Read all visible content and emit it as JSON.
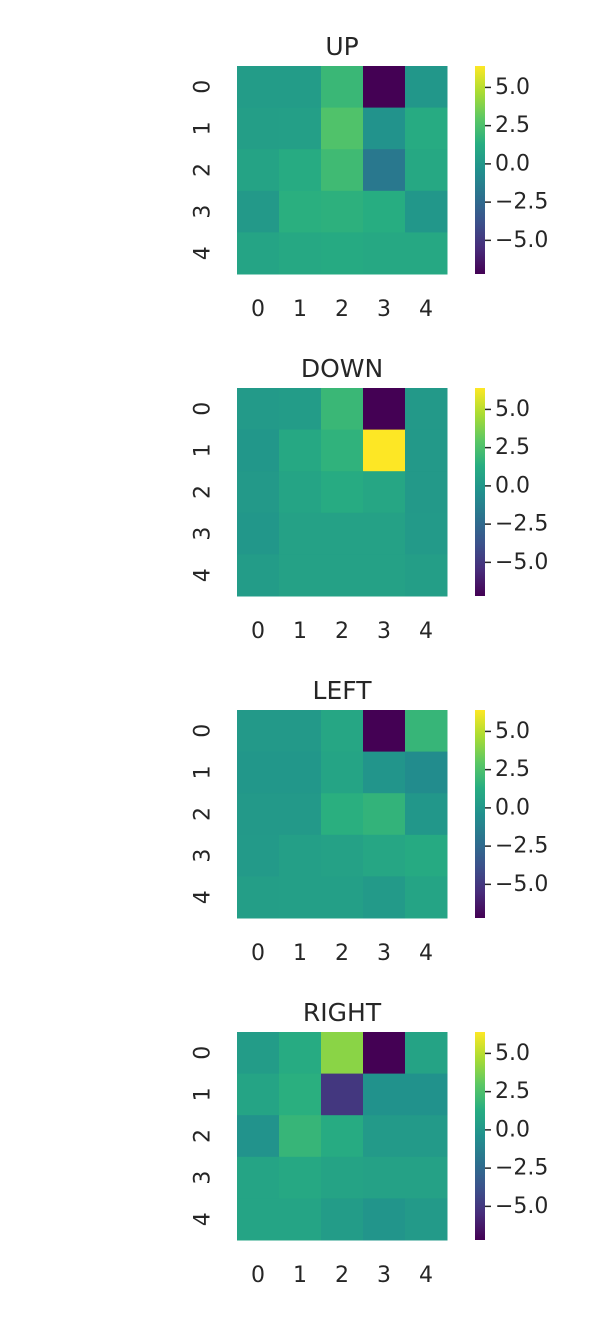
{
  "chart_data": [
    {
      "type": "heatmap",
      "title": "UP",
      "x": [
        "0",
        "1",
        "2",
        "3",
        "4"
      ],
      "y": [
        "0",
        "1",
        "2",
        "3",
        "4"
      ],
      "values": [
        [
          0.3,
          0.3,
          1.9,
          -7.2,
          0.0
        ],
        [
          0.4,
          0.5,
          2.6,
          -0.2,
          1.2
        ],
        [
          0.7,
          1.2,
          2.1,
          -1.7,
          1.0
        ],
        [
          0.1,
          1.4,
          1.5,
          1.3,
          0.0
        ],
        [
          0.8,
          1.0,
          1.1,
          1.0,
          1.0
        ]
      ],
      "colorbar": {
        "ticks": [
          "5.0",
          "2.5",
          "0.0",
          "−2.5",
          "−5.0"
        ],
        "tick_values": [
          5.0,
          2.5,
          0.0,
          -2.5,
          -5.0
        ],
        "range": [
          -7.2,
          6.4
        ],
        "colormap": "viridis"
      }
    },
    {
      "type": "heatmap",
      "title": "DOWN",
      "x": [
        "0",
        "1",
        "2",
        "3",
        "4"
      ],
      "y": [
        "0",
        "1",
        "2",
        "3",
        "4"
      ],
      "values": [
        [
          0.2,
          0.3,
          1.9,
          -7.2,
          0.1
        ],
        [
          0.0,
          1.0,
          1.6,
          6.4,
          0.1
        ],
        [
          0.1,
          0.8,
          1.2,
          0.9,
          0.1
        ],
        [
          0.0,
          0.6,
          0.6,
          0.6,
          0.2
        ],
        [
          0.3,
          0.6,
          0.6,
          0.6,
          0.4
        ]
      ],
      "colorbar": {
        "ticks": [
          "5.0",
          "2.5",
          "0.0",
          "−2.5",
          "−5.0"
        ],
        "tick_values": [
          5.0,
          2.5,
          0.0,
          -2.5,
          -5.0
        ],
        "range": [
          -7.2,
          6.4
        ],
        "colormap": "viridis"
      }
    },
    {
      "type": "heatmap",
      "title": "LEFT",
      "x": [
        "0",
        "1",
        "2",
        "3",
        "4"
      ],
      "y": [
        "0",
        "1",
        "2",
        "3",
        "4"
      ],
      "values": [
        [
          0.1,
          0.1,
          0.9,
          -7.2,
          1.8
        ],
        [
          0.0,
          0.0,
          0.8,
          -0.1,
          -0.6
        ],
        [
          0.1,
          0.1,
          1.4,
          1.7,
          0.0
        ],
        [
          0.2,
          0.5,
          0.6,
          0.9,
          1.1
        ],
        [
          0.4,
          0.5,
          0.5,
          0.2,
          0.8
        ]
      ],
      "colorbar": {
        "ticks": [
          "5.0",
          "2.5",
          "0.0",
          "−2.5",
          "−5.0"
        ],
        "tick_values": [
          5.0,
          2.5,
          0.0,
          -2.5,
          -5.0
        ],
        "range": [
          -7.2,
          6.4
        ],
        "colormap": "viridis"
      }
    },
    {
      "type": "heatmap",
      "title": "RIGHT",
      "x": [
        "0",
        "1",
        "2",
        "3",
        "4"
      ],
      "y": [
        "0",
        "1",
        "2",
        "3",
        "4"
      ],
      "values": [
        [
          0.3,
          1.2,
          4.0,
          -7.2,
          0.7
        ],
        [
          0.8,
          1.4,
          -5.0,
          -0.3,
          -0.3
        ],
        [
          -0.2,
          1.8,
          1.2,
          0.2,
          0.2
        ],
        [
          0.8,
          1.0,
          0.7,
          0.6,
          0.6
        ],
        [
          0.8,
          0.8,
          0.3,
          -0.1,
          0.2
        ]
      ],
      "colorbar": {
        "ticks": [
          "5.0",
          "2.5",
          "0.0",
          "−2.5",
          "−5.0"
        ],
        "tick_values": [
          5.0,
          2.5,
          0.0,
          -2.5,
          -5.0
        ],
        "range": [
          -7.2,
          6.4
        ],
        "colormap": "viridis"
      }
    }
  ]
}
